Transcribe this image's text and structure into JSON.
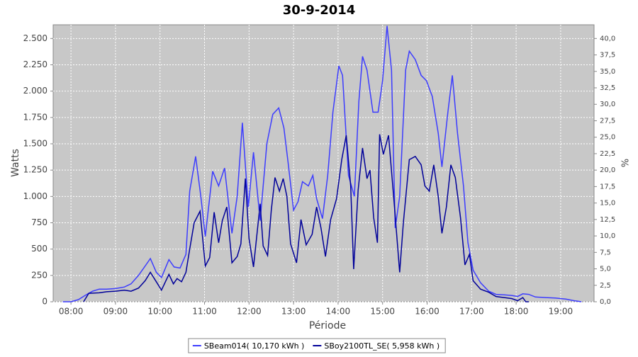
{
  "chart_data": {
    "type": "line",
    "title": "30-9-2014",
    "x_label": "Période",
    "y_label": "Watts",
    "y2_label": "%",
    "xlim": [
      "07:36",
      "19:45"
    ],
    "xticks": [
      "08:00",
      "09:00",
      "10:00",
      "11:00",
      "12:00",
      "13:00",
      "14:00",
      "15:00",
      "16:00",
      "17:00",
      "18:00",
      "19:00"
    ],
    "ylim": [
      0,
      2630
    ],
    "yticks": [
      {
        "value": 0,
        "label": "0"
      },
      {
        "value": 250,
        "label": "250"
      },
      {
        "value": 500,
        "label": "500"
      },
      {
        "value": 750,
        "label": "750"
      },
      {
        "value": 1000,
        "label": "1.000"
      },
      {
        "value": 1250,
        "label": "1.250"
      },
      {
        "value": 1500,
        "label": "1.500"
      },
      {
        "value": 1750,
        "label": "1.750"
      },
      {
        "value": 2000,
        "label": "2.000"
      },
      {
        "value": 2250,
        "label": "2.250"
      },
      {
        "value": 2500,
        "label": "2.500"
      }
    ],
    "y2lim": [
      0,
      42.08
    ],
    "y2ticks": [
      {
        "value": 0,
        "label": "0,0"
      },
      {
        "value": 2.5,
        "label": "2,5"
      },
      {
        "value": 5,
        "label": "5,0"
      },
      {
        "value": 7.5,
        "label": "7,5"
      },
      {
        "value": 10,
        "label": "10,0"
      },
      {
        "value": 12.5,
        "label": "12,5"
      },
      {
        "value": 15,
        "label": "15,0"
      },
      {
        "value": 17.5,
        "label": "17,5"
      },
      {
        "value": 20,
        "label": "20,0"
      },
      {
        "value": 22.5,
        "label": "22,5"
      },
      {
        "value": 25,
        "label": "25,0"
      },
      {
        "value": 27.5,
        "label": "27,5"
      },
      {
        "value": 30,
        "label": "30,0"
      },
      {
        "value": 32.5,
        "label": "32,5"
      },
      {
        "value": 35,
        "label": "35,0"
      },
      {
        "value": 37.5,
        "label": "37,5"
      },
      {
        "value": 40,
        "label": "40,0"
      }
    ],
    "grid": true,
    "legend": "bottom",
    "series": [
      {
        "name": "SBeam014( 10,170 kWh )",
        "color": "#3c3cff",
        "x": [
          "07:49",
          "08:00",
          "08:10",
          "08:19",
          "08:29",
          "08:38",
          "08:48",
          "09:00",
          "09:12",
          "09:21",
          "09:31",
          "09:40",
          "09:47",
          "09:55",
          "10:02",
          "10:12",
          "10:19",
          "10:27",
          "10:35",
          "10:40",
          "10:48",
          "10:55",
          "11:01",
          "11:11",
          "11:19",
          "11:27",
          "11:37",
          "11:44",
          "11:51",
          "11:59",
          "12:06",
          "12:15",
          "12:24",
          "12:32",
          "12:40",
          "12:47",
          "12:53",
          "13:00",
          "13:06",
          "13:12",
          "13:20",
          "13:26",
          "13:31",
          "13:39",
          "13:46",
          "13:53",
          "14:01",
          "14:06",
          "14:14",
          "14:22",
          "14:28",
          "14:33",
          "14:39",
          "14:47",
          "14:54",
          "15:00",
          "15:06",
          "15:12",
          "15:17",
          "15:23",
          "15:31",
          "15:36",
          "15:44",
          "15:52",
          "15:59",
          "16:07",
          "16:15",
          "16:20",
          "16:28",
          "16:34",
          "16:41",
          "16:49",
          "16:55",
          "17:02",
          "17:12",
          "17:23",
          "17:33",
          "17:44",
          "17:54",
          "18:02",
          "18:09",
          "18:17",
          "18:26",
          "18:40",
          "18:53",
          "19:07",
          "19:18",
          "19:28"
        ],
        "values": [
          0,
          0,
          20,
          60,
          100,
          120,
          120,
          125,
          140,
          170,
          250,
          340,
          410,
          280,
          230,
          400,
          330,
          320,
          450,
          1050,
          1380,
          1000,
          620,
          1240,
          1100,
          1270,
          650,
          1000,
          1700,
          900,
          1420,
          770,
          1500,
          1780,
          1840,
          1650,
          1300,
          870,
          950,
          1140,
          1100,
          1200,
          980,
          790,
          1200,
          1800,
          2240,
          2150,
          1200,
          1000,
          1900,
          2330,
          2200,
          1800,
          1800,
          2100,
          2620,
          2200,
          700,
          1000,
          2200,
          2380,
          2300,
          2150,
          2100,
          1950,
          1600,
          1280,
          1800,
          2150,
          1600,
          1100,
          560,
          300,
          180,
          100,
          70,
          65,
          60,
          50,
          75,
          70,
          45,
          40,
          35,
          25,
          10,
          0
        ]
      },
      {
        "name": "SBoy2100TL_SE( 5,958 kWh )",
        "color": "#000099",
        "x": [
          "08:17",
          "08:24",
          "08:38",
          "08:48",
          "09:00",
          "09:12",
          "09:21",
          "09:31",
          "09:40",
          "09:47",
          "09:55",
          "10:02",
          "10:12",
          "10:18",
          "10:23",
          "10:29",
          "10:35",
          "10:40",
          "10:46",
          "10:54",
          "11:01",
          "11:07",
          "11:13",
          "11:19",
          "11:24",
          "11:30",
          "11:37",
          "11:44",
          "11:49",
          "11:55",
          "12:00",
          "12:06",
          "12:15",
          "12:19",
          "12:25",
          "12:30",
          "12:35",
          "12:41",
          "12:46",
          "12:51",
          "12:56",
          "13:04",
          "13:10",
          "13:17",
          "13:25",
          "13:31",
          "13:37",
          "13:43",
          "13:50",
          "13:58",
          "14:05",
          "14:11",
          "14:17",
          "14:21",
          "14:27",
          "14:33",
          "14:39",
          "14:43",
          "14:48",
          "14:53",
          "14:56",
          "15:01",
          "15:08",
          "15:16",
          "15:23",
          "15:28",
          "15:36",
          "15:44",
          "15:52",
          "15:57",
          "16:03",
          "16:09",
          "16:15",
          "16:20",
          "16:26",
          "16:32",
          "16:38",
          "16:45",
          "16:51",
          "16:57",
          "17:02",
          "17:12",
          "17:23",
          "17:33",
          "17:44",
          "17:54",
          "18:02",
          "18:09",
          "18:13",
          "18:17"
        ],
        "values": [
          0,
          80,
          85,
          95,
          100,
          110,
          100,
          130,
          200,
          280,
          190,
          110,
          260,
          170,
          220,
          190,
          280,
          500,
          750,
          860,
          340,
          420,
          850,
          560,
          770,
          900,
          370,
          430,
          550,
          1170,
          600,
          330,
          930,
          530,
          440,
          870,
          1180,
          1050,
          1170,
          1000,
          550,
          370,
          780,
          540,
          640,
          900,
          700,
          430,
          780,
          980,
          1350,
          1580,
          1100,
          310,
          1060,
          1460,
          1170,
          1250,
          800,
          560,
          1590,
          1400,
          1580,
          900,
          280,
          750,
          1350,
          1380,
          1300,
          1100,
          1050,
          1300,
          1000,
          650,
          900,
          1300,
          1180,
          800,
          350,
          450,
          200,
          120,
          90,
          50,
          40,
          30,
          10,
          40,
          0,
          0
        ]
      }
    ]
  }
}
